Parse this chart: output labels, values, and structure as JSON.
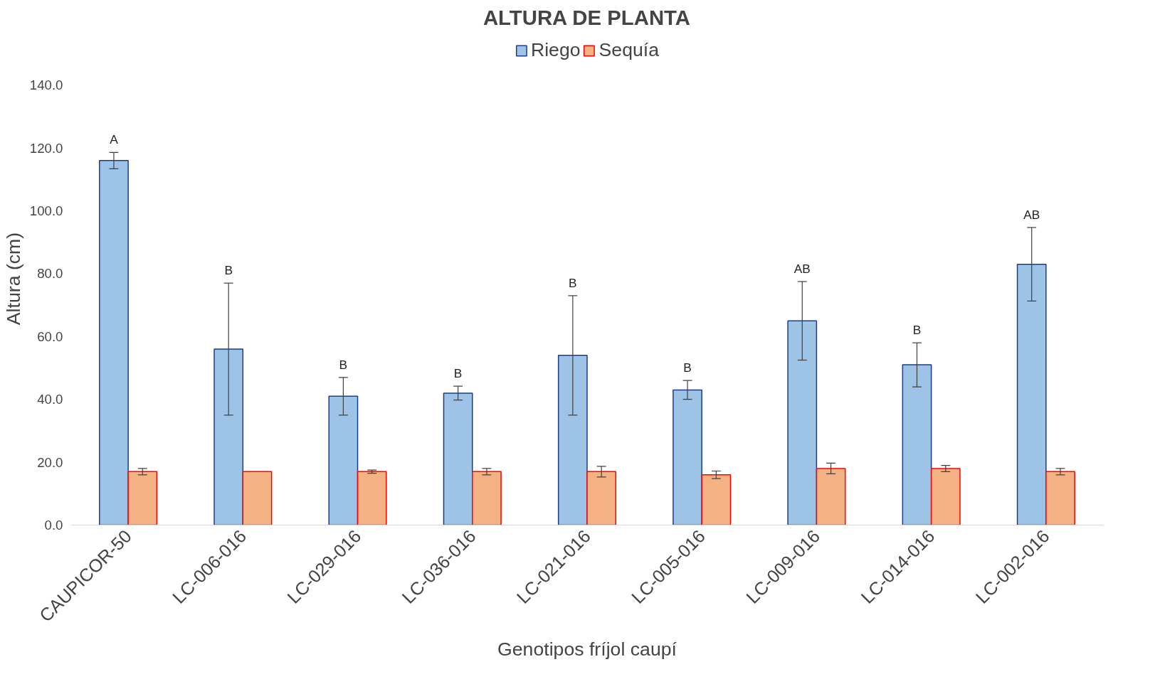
{
  "chart_data": {
    "type": "bar",
    "title": "ALTURA DE PLANTA",
    "xlabel": "Genotipos fríjol caupí",
    "ylabel": "Altura (cm)",
    "categories": [
      "CAUPICOR-50",
      "LC-006-016",
      "LC-029-016",
      "LC-036-016",
      "LC-021-016",
      "LC-005-016",
      "LC-009-016",
      "LC-014-016",
      "LC-002-016"
    ],
    "series": [
      {
        "name": "Riego",
        "color": "#9dc3e6",
        "values": [
          116,
          56,
          41,
          42,
          54,
          43,
          65,
          51,
          83
        ],
        "errors": [
          2.6,
          21,
          6,
          2.2,
          19,
          3,
          12.5,
          7,
          11.7
        ]
      },
      {
        "name": "Sequía",
        "color": "#f4b183",
        "values": [
          17,
          17,
          17,
          17,
          17,
          16,
          18,
          18,
          17
        ],
        "errors": [
          1,
          null,
          0.5,
          1,
          1.7,
          1.2,
          1.7,
          1,
          1
        ]
      }
    ],
    "ylim": [
      0,
      140
    ],
    "yticks": [
      {
        "value": 0,
        "label": "0.0"
      },
      {
        "value": 20,
        "label": "20.0"
      },
      {
        "value": 40,
        "label": "40.0"
      },
      {
        "value": 60,
        "label": "60.0"
      },
      {
        "value": 80,
        "label": "80.0"
      },
      {
        "value": 100,
        "label": "100.0"
      },
      {
        "value": 120,
        "label": "120.0"
      },
      {
        "value": 140,
        "label": "140.0"
      }
    ],
    "annotations": [
      "A",
      "B",
      "B",
      "B",
      "B",
      "B",
      "AB",
      "B",
      "AB"
    ],
    "grid": false,
    "legend": "top"
  }
}
